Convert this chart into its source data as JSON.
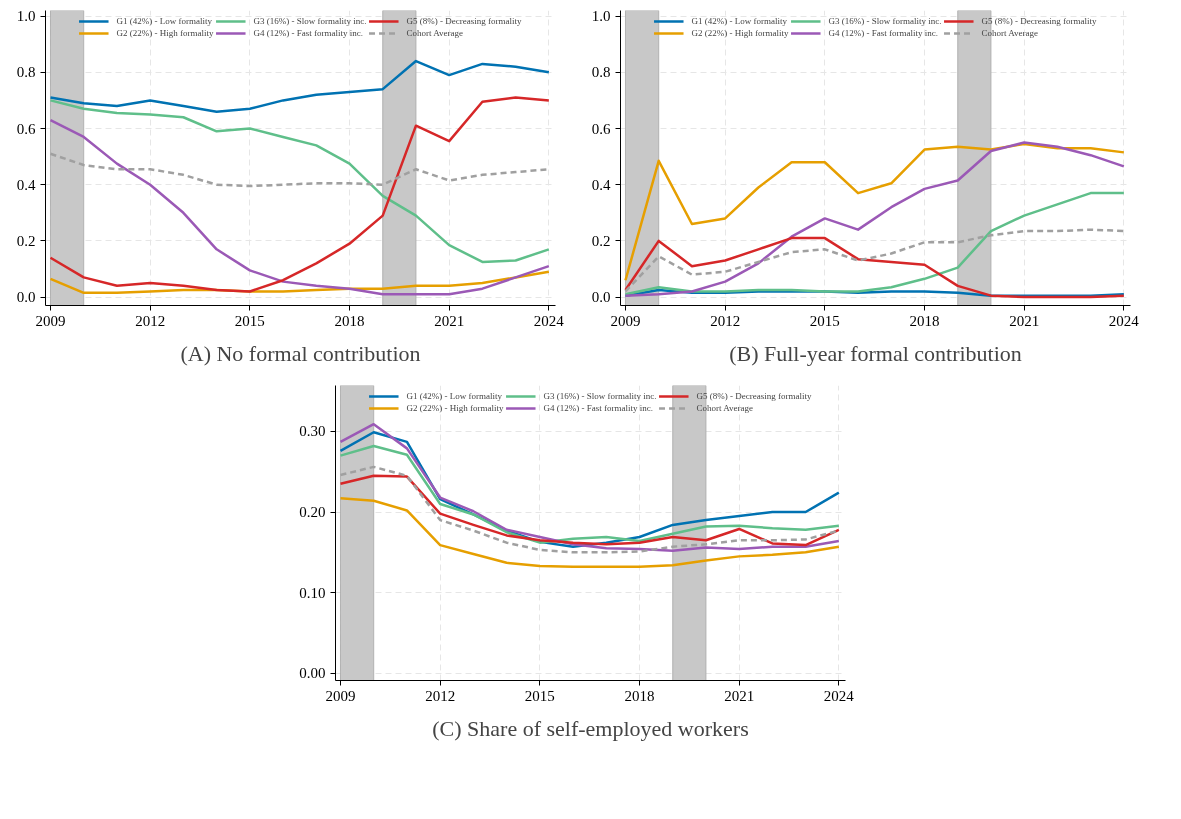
{
  "chart_data": [
    {
      "type": "line",
      "title": "(A) No formal contribution",
      "x": [
        2009,
        2010,
        2011,
        2012,
        2013,
        2014,
        2015,
        2016,
        2017,
        2018,
        2019,
        2020,
        2021,
        2022,
        2023,
        2024
      ],
      "series": [
        {
          "name": "G1 (42%) - Low formality",
          "color": "#0072b2",
          "values": [
            0.71,
            0.69,
            0.68,
            0.7,
            0.68,
            0.66,
            0.67,
            0.7,
            0.72,
            0.73,
            0.74,
            0.84,
            0.79,
            0.83,
            0.82,
            0.8
          ]
        },
        {
          "name": "G2 (22%) - High formality",
          "color": "#e69f00",
          "values": [
            0.065,
            0.015,
            0.015,
            0.02,
            0.025,
            0.025,
            0.02,
            0.02,
            0.025,
            0.03,
            0.03,
            0.04,
            0.04,
            0.05,
            0.07,
            0.09
          ]
        },
        {
          "name": "G3 (16%) - Slow formality inc.",
          "color": "#5fbf8a",
          "values": [
            0.7,
            0.67,
            0.655,
            0.65,
            0.64,
            0.59,
            0.6,
            0.57,
            0.54,
            0.475,
            0.36,
            0.29,
            0.185,
            0.125,
            0.13,
            0.17
          ]
        },
        {
          "name": "G4 (12%) - Fast formality inc.",
          "color": "#9b59b6",
          "values": [
            0.63,
            0.57,
            0.475,
            0.4,
            0.3,
            0.17,
            0.095,
            0.055,
            0.04,
            0.03,
            0.01,
            0.01,
            0.01,
            0.03,
            0.07,
            0.11
          ]
        },
        {
          "name": "G5 (8%) - Decreasing formality",
          "color": "#d62728",
          "values": [
            0.14,
            0.07,
            0.04,
            0.05,
            0.04,
            0.025,
            0.02,
            0.06,
            0.12,
            0.19,
            0.29,
            0.61,
            0.555,
            0.695,
            0.71,
            0.7
          ]
        },
        {
          "name": "Cohort Average",
          "color": "#a0a0a0",
          "line_style": "dashed",
          "values": [
            0.51,
            0.47,
            0.455,
            0.455,
            0.435,
            0.4,
            0.395,
            0.4,
            0.405,
            0.405,
            0.4,
            0.455,
            0.415,
            0.435,
            0.445,
            0.455
          ]
        }
      ],
      "xlim": [
        2008.85,
        2024.2
      ],
      "xticks": [
        2009,
        2012,
        2015,
        2018,
        2021,
        2024
      ],
      "ylim": [
        -0.03,
        1.02
      ],
      "yticks": [
        {
          "value": 0,
          "label": "0.0"
        },
        {
          "value": 0.2,
          "label": "0.2"
        },
        {
          "value": 0.4,
          "label": "0.4"
        },
        {
          "value": 0.6,
          "label": "0.6"
        },
        {
          "value": 0.8,
          "label": "0.8"
        },
        {
          "value": 1,
          "label": "1.0"
        }
      ],
      "bands": [
        {
          "axis": "x",
          "from": 2009,
          "to": 2010,
          "color": "#c8c8c8"
        },
        {
          "axis": "x",
          "from": 2019,
          "to": 2020,
          "color": "#c8c8c8"
        }
      ],
      "grid": true,
      "legend": "top"
    },
    {
      "type": "line",
      "title": "(B) Full-year formal contribution",
      "x": [
        2009,
        2010,
        2011,
        2012,
        2013,
        2014,
        2015,
        2016,
        2017,
        2018,
        2019,
        2020,
        2021,
        2022,
        2023,
        2024
      ],
      "series": [
        {
          "name": "G1 (42%) - Low formality",
          "color": "#0072b2",
          "values": [
            0.005,
            0.025,
            0.015,
            0.015,
            0.02,
            0.02,
            0.02,
            0.015,
            0.02,
            0.02,
            0.015,
            0.005,
            0.005,
            0.005,
            0.005,
            0.01
          ]
        },
        {
          "name": "G2 (22%) - High formality",
          "color": "#e69f00",
          "values": [
            0.06,
            0.485,
            0.26,
            0.28,
            0.39,
            0.48,
            0.48,
            0.37,
            0.405,
            0.525,
            0.535,
            0.525,
            0.545,
            0.53,
            0.53,
            0.515
          ]
        },
        {
          "name": "G3 (16%) - Slow formality inc.",
          "color": "#5fbf8a",
          "values": [
            0.01,
            0.035,
            0.02,
            0.02,
            0.025,
            0.025,
            0.02,
            0.02,
            0.035,
            0.065,
            0.105,
            0.235,
            0.29,
            0.33,
            0.37,
            0.37
          ]
        },
        {
          "name": "G4 (12%) - Fast formality inc.",
          "color": "#9b59b6",
          "values": [
            0.005,
            0.01,
            0.02,
            0.055,
            0.12,
            0.215,
            0.28,
            0.24,
            0.32,
            0.385,
            0.415,
            0.52,
            0.55,
            0.535,
            0.505,
            0.465
          ]
        },
        {
          "name": "G5 (8%) - Decreasing formality",
          "color": "#d62728",
          "values": [
            0.025,
            0.2,
            0.11,
            0.13,
            0.17,
            0.21,
            0.21,
            0.135,
            0.125,
            0.115,
            0.04,
            0.005,
            0.0,
            0.0,
            0.0,
            0.005
          ]
        },
        {
          "name": "Cohort Average",
          "color": "#a0a0a0",
          "line_style": "dashed",
          "values": [
            0.02,
            0.145,
            0.08,
            0.09,
            0.125,
            0.16,
            0.17,
            0.13,
            0.155,
            0.195,
            0.195,
            0.22,
            0.235,
            0.235,
            0.24,
            0.235
          ]
        }
      ],
      "xlim": [
        2008.85,
        2024.2
      ],
      "xticks": [
        2009,
        2012,
        2015,
        2018,
        2021,
        2024
      ],
      "ylim": [
        -0.03,
        1.02
      ],
      "yticks": [
        {
          "value": 0,
          "label": "0.0"
        },
        {
          "value": 0.2,
          "label": "0.2"
        },
        {
          "value": 0.4,
          "label": "0.4"
        },
        {
          "value": 0.6,
          "label": "0.6"
        },
        {
          "value": 0.8,
          "label": "0.8"
        },
        {
          "value": 1,
          "label": "1.0"
        }
      ],
      "bands": [
        {
          "axis": "x",
          "from": 2009,
          "to": 2010,
          "color": "#c8c8c8"
        },
        {
          "axis": "x",
          "from": 2019,
          "to": 2020,
          "color": "#c8c8c8"
        }
      ],
      "grid": true,
      "legend": "top"
    },
    {
      "type": "line",
      "title": "(C) Share of self-employed workers",
      "x": [
        2009,
        2010,
        2011,
        2012,
        2013,
        2014,
        2015,
        2016,
        2017,
        2018,
        2019,
        2020,
        2021,
        2022,
        2023,
        2024
      ],
      "series": [
        {
          "name": "G1 (42%) - Low formality",
          "color": "#0072b2",
          "values": [
            0.276,
            0.299,
            0.287,
            0.216,
            0.197,
            0.177,
            0.163,
            0.157,
            0.162,
            0.169,
            0.184,
            0.19,
            0.195,
            0.2,
            0.2,
            0.224
          ]
        },
        {
          "name": "G2 (22%) - High formality",
          "color": "#e69f00",
          "values": [
            0.217,
            0.214,
            0.202,
            0.159,
            0.148,
            0.137,
            0.133,
            0.132,
            0.132,
            0.132,
            0.134,
            0.14,
            0.145,
            0.147,
            0.15,
            0.157
          ]
        },
        {
          "name": "G3 (16%) - Slow formality inc.",
          "color": "#5fbf8a",
          "values": [
            0.27,
            0.282,
            0.271,
            0.21,
            0.197,
            0.175,
            0.162,
            0.167,
            0.169,
            0.164,
            0.173,
            0.182,
            0.183,
            0.18,
            0.178,
            0.183
          ]
        },
        {
          "name": "G4 (12%) - Fast formality inc.",
          "color": "#9b59b6",
          "values": [
            0.287,
            0.309,
            0.279,
            0.218,
            0.201,
            0.178,
            0.169,
            0.16,
            0.155,
            0.154,
            0.152,
            0.156,
            0.154,
            0.157,
            0.157,
            0.164
          ]
        },
        {
          "name": "G5 (8%) - Decreasing formality",
          "color": "#d62728",
          "values": [
            0.235,
            0.245,
            0.244,
            0.198,
            0.184,
            0.171,
            0.165,
            0.162,
            0.16,
            0.162,
            0.169,
            0.165,
            0.179,
            0.161,
            0.159,
            0.178
          ]
        },
        {
          "name": "Cohort Average",
          "color": "#a0a0a0",
          "line_style": "dashed",
          "values": [
            0.246,
            0.256,
            0.245,
            0.19,
            0.177,
            0.162,
            0.153,
            0.15,
            0.15,
            0.151,
            0.157,
            0.16,
            0.165,
            0.165,
            0.166,
            0.177
          ]
        }
      ],
      "xlim": [
        2008.85,
        2024.2
      ],
      "xticks": [
        2009,
        2012,
        2015,
        2018,
        2021,
        2024
      ],
      "ylim": [
        -0.009,
        0.357
      ],
      "yticks": [
        {
          "value": 0,
          "label": "0.00"
        },
        {
          "value": 0.1,
          "label": "0.10"
        },
        {
          "value": 0.2,
          "label": "0.20"
        },
        {
          "value": 0.3,
          "label": "0.30"
        }
      ],
      "bands": [
        {
          "axis": "x",
          "from": 2009,
          "to": 2010,
          "color": "#c8c8c8"
        },
        {
          "axis": "x",
          "from": 2019,
          "to": 2020,
          "color": "#c8c8c8"
        }
      ],
      "grid": true,
      "legend": "top"
    }
  ]
}
